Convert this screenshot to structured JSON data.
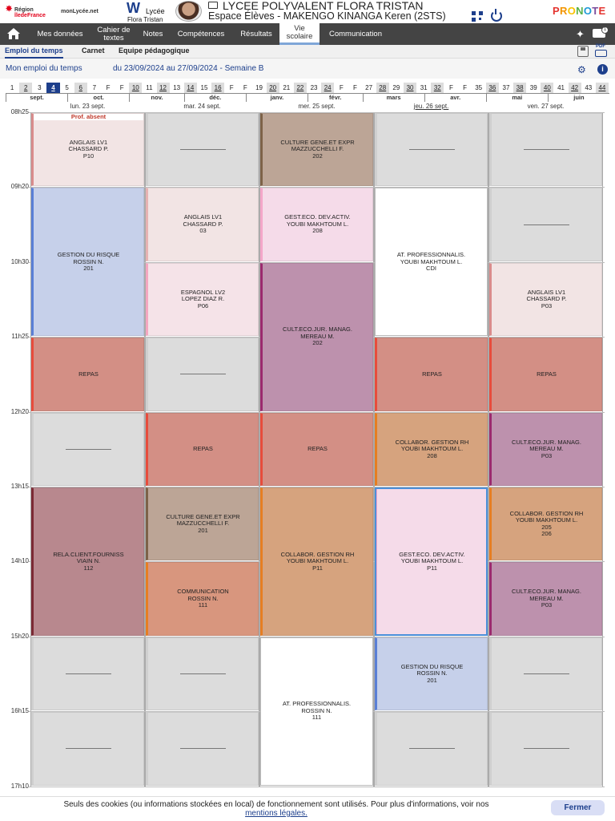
{
  "header": {
    "region_line1": "Région",
    "region_line2": "îledeFrance",
    "monlycee": "monLycée.net",
    "lycee_line1": "Lycée",
    "lycee_line2": "Flora Tristan",
    "school_title": "LYCEE POLYVALENT FLORA TRISTAN",
    "space_label": "Espace Élèves - MAKENGO KINANGA Keren (2STS)",
    "brand": "PRONOTE",
    "brand_colors": [
      "#e4342f",
      "#f29400",
      "#f9c200",
      "#57b04a",
      "#1d9ad6",
      "#7a4c9c",
      "#e4342f"
    ]
  },
  "nav": {
    "items": [
      {
        "label": "Mes données"
      },
      {
        "label": "Cahier de textes"
      },
      {
        "label": "Notes"
      },
      {
        "label": "Compétences"
      },
      {
        "label": "Résultats"
      },
      {
        "label": "Vie scolaire"
      },
      {
        "label": "Communication"
      }
    ],
    "messages_badge": "1"
  },
  "subtabs": [
    {
      "label": "Emploi du temps"
    },
    {
      "label": "Carnet"
    },
    {
      "label": "Equipe pédagogique"
    }
  ],
  "pdf_label": "PDF",
  "subhead": {
    "title": "Mon emploi du temps",
    "period": "du 23/09/2024 au 27/09/2024 - Semaine B"
  },
  "weeks": [
    "1",
    "2",
    "3",
    "4",
    "5",
    "6",
    "7",
    "F",
    "F",
    "10",
    "11",
    "12",
    "13",
    "14",
    "15",
    "16",
    "F",
    "F",
    "19",
    "20",
    "21",
    "22",
    "23",
    "24",
    "F",
    "F",
    "27",
    "28",
    "29",
    "30",
    "31",
    "32",
    "F",
    "F",
    "35",
    "36",
    "37",
    "38",
    "39",
    "40",
    "41",
    "42",
    "43",
    "44"
  ],
  "current_week": "4",
  "months": [
    "sept.",
    "oct.",
    "nov.",
    "déc.",
    "janv.",
    "févr.",
    "mars",
    "avr.",
    "mai",
    "juin"
  ],
  "days": [
    {
      "label": "lun. 23 sept."
    },
    {
      "label": "mar. 24 sept."
    },
    {
      "label": "mer. 25 sept."
    },
    {
      "label": "jeu. 26 sept."
    },
    {
      "label": "ven. 27 sept."
    }
  ],
  "today_index": 3,
  "times": [
    "08h25",
    "09h20",
    "10h30",
    "11h25",
    "12h20",
    "13h15",
    "14h10",
    "15h20",
    "16h15",
    "17h10"
  ],
  "colors": {
    "anglais": "#f2e4e4",
    "gestion_risque": "#c6d0ea",
    "repas": "#d38f85",
    "relaclient": "#b8888e",
    "culture": "#bca596",
    "espagnol": "#f5e3e8",
    "communication": "#d8967e",
    "gesteco": "#f5dbe9",
    "culteco": "#bd91ad",
    "collabor": "#d6a37e",
    "atpro": "#ffffff",
    "empty": "#dcdcdc"
  },
  "courses": [
    {
      "day": 0,
      "slot": 0,
      "span": 1,
      "lines": [
        "ANGLAIS LV1",
        "CHASSARD P.",
        "P10"
      ],
      "color": "anglais",
      "bar": "#d98c8c",
      "badge": "Prof. absent"
    },
    {
      "day": 0,
      "slot": 1,
      "span": 2,
      "lines": [
        "GESTION DU RISQUE",
        "ROSSIN N.",
        "201"
      ],
      "color": "gestion_risque",
      "bar": "#5a7fd6"
    },
    {
      "day": 0,
      "slot": 3,
      "span": 1,
      "lines": [
        "REPAS"
      ],
      "color": "repas",
      "bar": "#e74c3c"
    },
    {
      "day": 0,
      "slot": 4,
      "span": 1,
      "lines": [],
      "color": "empty"
    },
    {
      "day": 0,
      "slot": 5,
      "span": 2,
      "lines": [
        "RELA.CLIENT.FOURNISS",
        "VIAIN N.",
        "112"
      ],
      "color": "relaclient",
      "bar": "#7b2a35"
    },
    {
      "day": 0,
      "slot": 7,
      "span": 1,
      "lines": [],
      "color": "empty"
    },
    {
      "day": 0,
      "slot": 8,
      "span": 1,
      "lines": [],
      "color": "empty"
    },
    {
      "day": 1,
      "slot": 0,
      "span": 1,
      "lines": [],
      "color": "empty"
    },
    {
      "day": 1,
      "slot": 1,
      "span": 1,
      "lines": [
        "ANGLAIS LV1",
        "CHASSARD P.",
        "03"
      ],
      "color": "anglais",
      "bar": "#e6b2b2"
    },
    {
      "day": 1,
      "slot": 2,
      "span": 1,
      "lines": [
        "ESPAGNOL LV2",
        "LOPEZ DIAZ R.",
        "P06"
      ],
      "color": "espagnol",
      "bar": "#f4a6c0"
    },
    {
      "day": 1,
      "slot": 3,
      "span": 1,
      "lines": [],
      "color": "empty"
    },
    {
      "day": 1,
      "slot": 4,
      "span": 1,
      "lines": [
        "REPAS"
      ],
      "color": "repas",
      "bar": "#e74c3c"
    },
    {
      "day": 1,
      "slot": 5,
      "span": 1,
      "lines": [
        "CULTURE GENE.ET EXPR",
        "MAZZUCCHELLI F.",
        "201"
      ],
      "color": "culture",
      "bar": "#7d6248"
    },
    {
      "day": 1,
      "slot": 6,
      "span": 1,
      "lines": [
        "COMMUNICATION",
        "ROSSIN N.",
        "111"
      ],
      "color": "communication",
      "bar": "#e67e22"
    },
    {
      "day": 1,
      "slot": 7,
      "span": 1,
      "lines": [],
      "color": "empty"
    },
    {
      "day": 1,
      "slot": 8,
      "span": 1,
      "lines": [],
      "color": "empty"
    },
    {
      "day": 2,
      "slot": 0,
      "span": 1,
      "lines": [
        "CULTURE GENE.ET EXPR",
        "MAZZUCCHELLI F.",
        "202"
      ],
      "color": "culture",
      "bar": "#7d6248"
    },
    {
      "day": 2,
      "slot": 1,
      "span": 1,
      "lines": [
        "GEST.ECO. DEV.ACTIV.",
        "YOUBI MAKHTOUM L.",
        "208"
      ],
      "color": "gesteco",
      "bar": "#f4a6c9"
    },
    {
      "day": 2,
      "slot": 2,
      "span": 2,
      "lines": [
        "CULT.ECO.JUR. MANAG.",
        "MEREAU M.",
        "202"
      ],
      "color": "culteco",
      "bar": "#9b2a6e"
    },
    {
      "day": 2,
      "slot": 4,
      "span": 1,
      "lines": [
        "REPAS"
      ],
      "color": "repas",
      "bar": "#e74c3c"
    },
    {
      "day": 2,
      "slot": 5,
      "span": 2,
      "lines": [
        "COLLABOR. GESTION RH",
        "YOUBI MAKHTOUM L.",
        "P11"
      ],
      "color": "collabor",
      "bar": "#e67e22"
    },
    {
      "day": 2,
      "slot": 7,
      "span": 2,
      "lines": [
        "AT. PROFESSIONNALIS.",
        "ROSSIN N.",
        "111"
      ],
      "color": "atpro",
      "bar": "#ffffff"
    },
    {
      "day": 3,
      "slot": 0,
      "span": 1,
      "lines": [],
      "color": "empty"
    },
    {
      "day": 3,
      "slot": 1,
      "span": 2,
      "lines": [
        "AT. PROFESSIONNALIS.",
        "YOUBI MAKHTOUM L.",
        "CDI"
      ],
      "color": "atpro",
      "bar": "#ffffff"
    },
    {
      "day": 3,
      "slot": 3,
      "span": 1,
      "lines": [
        "REPAS"
      ],
      "color": "repas",
      "bar": "#e74c3c"
    },
    {
      "day": 3,
      "slot": 4,
      "span": 1,
      "lines": [
        "COLLABOR. GESTION RH",
        "YOUBI MAKHTOUM L.",
        "208"
      ],
      "color": "collabor",
      "bar": "#e67e22"
    },
    {
      "day": 3,
      "slot": 5,
      "span": 2,
      "lines": [
        "GEST.ECO. DEV.ACTIV.",
        "YOUBI MAKHTOUM L.",
        "P11"
      ],
      "color": "gesteco",
      "bar": "#f4a6c9",
      "selected": true
    },
    {
      "day": 3,
      "slot": 7,
      "span": 1,
      "lines": [
        "GESTION DU RISQUE",
        "ROSSIN N.",
        "201"
      ],
      "color": "gestion_risque",
      "bar": "#5a7fd6"
    },
    {
      "day": 3,
      "slot": 8,
      "span": 1,
      "lines": [],
      "color": "empty"
    },
    {
      "day": 4,
      "slot": 0,
      "span": 1,
      "lines": [],
      "color": "empty"
    },
    {
      "day": 4,
      "slot": 1,
      "span": 1,
      "lines": [],
      "color": "empty"
    },
    {
      "day": 4,
      "slot": 2,
      "span": 1,
      "lines": [
        "ANGLAIS LV1",
        "CHASSARD P.",
        "P03"
      ],
      "color": "anglais",
      "bar": "#d98c8c"
    },
    {
      "day": 4,
      "slot": 3,
      "span": 1,
      "lines": [
        "REPAS"
      ],
      "color": "repas",
      "bar": "#e74c3c"
    },
    {
      "day": 4,
      "slot": 4,
      "span": 1,
      "lines": [
        "CULT.ECO.JUR. MANAG.",
        "MEREAU M.",
        "P03"
      ],
      "color": "culteco",
      "bar": "#9b2a6e"
    },
    {
      "day": 4,
      "slot": 5,
      "span": 1,
      "lines": [
        "COLLABOR. GESTION RH",
        "YOUBI MAKHTOUM L.",
        "205",
        "206"
      ],
      "color": "collabor",
      "bar": "#e67e22"
    },
    {
      "day": 4,
      "slot": 6,
      "span": 1,
      "lines": [
        "CULT.ECO.JUR. MANAG.",
        "MEREAU M.",
        "P03"
      ],
      "color": "culteco",
      "bar": "#9b2a6e"
    },
    {
      "day": 4,
      "slot": 7,
      "span": 1,
      "lines": [],
      "color": "empty"
    },
    {
      "day": 4,
      "slot": 8,
      "span": 1,
      "lines": [],
      "color": "empty"
    }
  ],
  "cookie": {
    "text": "Seuls des cookies (ou informations stockées en local) de fonctionnement sont utilisés. Pour plus d'informations, voir nos",
    "link": "mentions légales.",
    "button": "Fermer"
  }
}
